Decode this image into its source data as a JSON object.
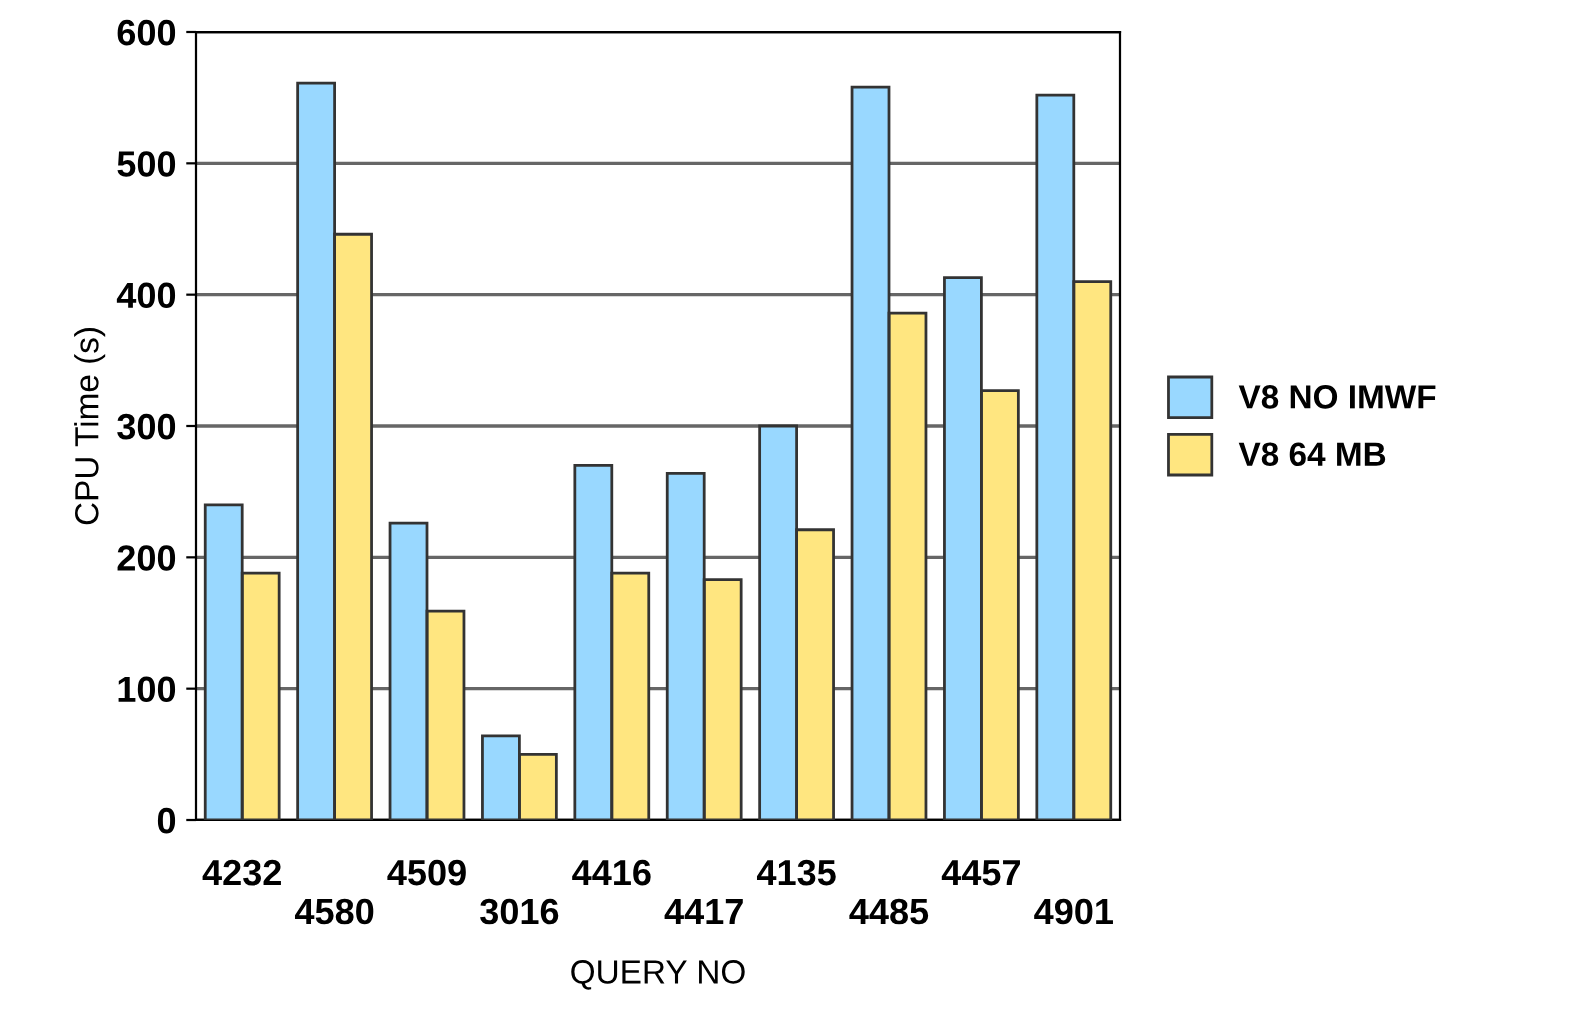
{
  "chart_data": {
    "type": "bar",
    "xlabel": "QUERY NO",
    "ylabel": "CPU Time (s)",
    "categories": [
      "4232",
      "4580",
      "4509",
      "3016",
      "4416",
      "4417",
      "4135",
      "4485",
      "4457",
      "4901"
    ],
    "series": [
      {
        "name": "V8 NO IMWF",
        "color": "#99d8ff",
        "values": [
          240,
          561,
          226,
          64,
          270,
          264,
          300,
          558,
          413,
          552
        ]
      },
      {
        "name": "V8 64 MB",
        "color": "#ffe680",
        "values": [
          188,
          446,
          159,
          50,
          188,
          183,
          221,
          386,
          327,
          410
        ]
      }
    ],
    "ylim": [
      0,
      600
    ],
    "yticks": [
      0,
      100,
      200,
      300,
      400,
      500,
      600
    ],
    "grid": "y",
    "legend": "right"
  }
}
